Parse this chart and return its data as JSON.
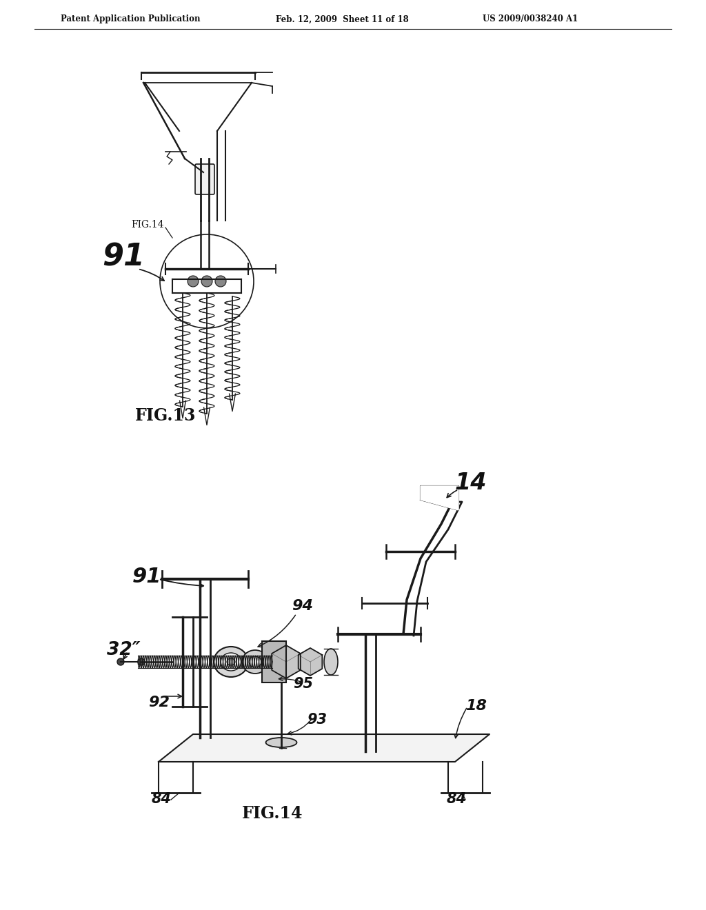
{
  "background_color": "#ffffff",
  "header_left": "Patent Application Publication",
  "header_mid": "Feb. 12, 2009  Sheet 11 of 18",
  "header_right": "US 2009/0038240 A1",
  "fig13_label": "FIG.13",
  "fig14_label": "FIG.14",
  "fig14_callout": "FIG.14",
  "label_91_fig13": "91",
  "label_91_fig14": "91",
  "label_32": "32″",
  "label_92": "92",
  "label_93": "93",
  "label_94": "94",
  "label_95": "95",
  "label_84a": "84",
  "label_84b": "84",
  "label_18": "18",
  "label_14": "14",
  "line_color": "#1a1a1a",
  "text_color": "#111111"
}
